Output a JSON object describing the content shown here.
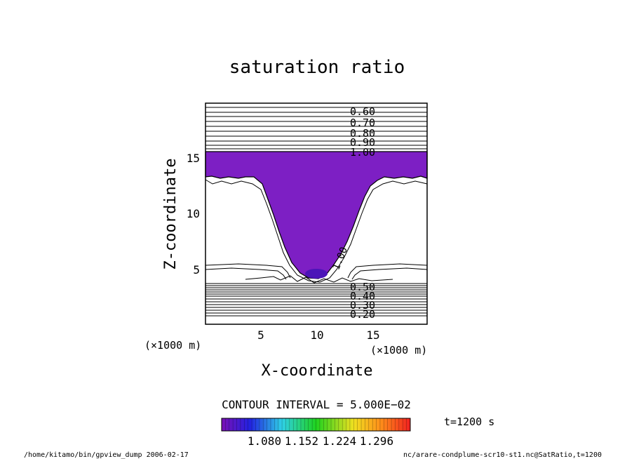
{
  "chart_data": {
    "type": "contour",
    "title": "saturation ratio",
    "xlabel": "X-coordinate",
    "ylabel": "Z-coordinate",
    "x_unit": "(×1000 m)",
    "y_unit": "(×1000 m)",
    "xlim": [
      0,
      19.6
    ],
    "ylim": [
      0,
      19.6
    ],
    "x_ticks": [
      "5",
      "10",
      "15"
    ],
    "y_ticks": [
      "5",
      "10",
      "15"
    ],
    "contour_interval_text": "CONTOUR INTERVAL = 5.000E−02",
    "upper_contour_labels": [
      "0.60",
      "0.70",
      "0.80",
      "0.90",
      "1.00"
    ],
    "lower_contour_labels": [
      "0.50",
      "0.40",
      "0.30",
      "0.20"
    ],
    "inline_contour_label": "1.00",
    "colorbar_ticks": [
      "1.080",
      "1.152",
      "1.224",
      "1.296"
    ],
    "time_label": "t=1200 s",
    "colors": {
      "supersaturated_fill": "#7d1fc4"
    }
  },
  "footer": {
    "left": "/home/kitamo/bin/gpview_dump  2006-02-17",
    "right": "nc/arare-condplume-scr10-st1.nc@SatRatio,t=1200"
  }
}
